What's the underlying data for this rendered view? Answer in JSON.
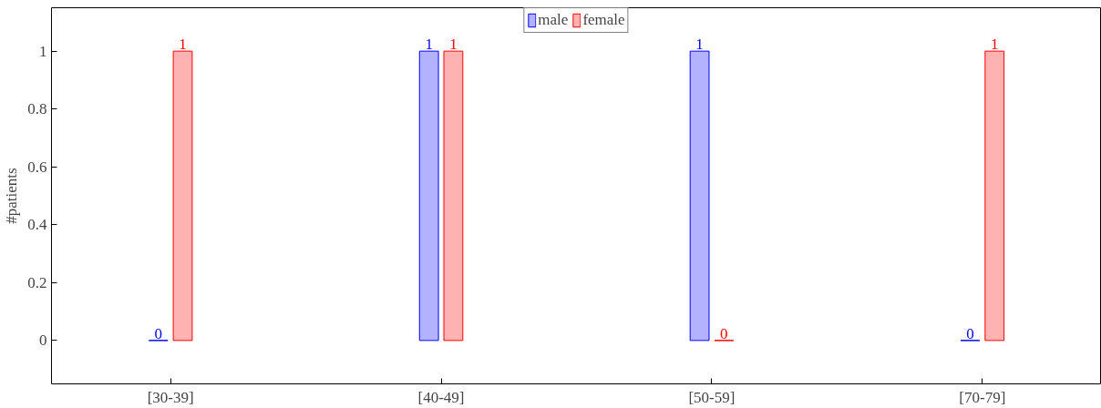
{
  "chart_data": {
    "type": "bar",
    "ylabel": "#patients",
    "categories": [
      "[30-39]",
      "[40-49]",
      "[50-59]",
      "[70-79]"
    ],
    "series": [
      {
        "name": "male",
        "color": "#0000ff",
        "values": [
          0,
          1,
          1,
          0
        ]
      },
      {
        "name": "female",
        "color": "#ff0000",
        "values": [
          1,
          1,
          0,
          1
        ]
      }
    ],
    "ylim": [
      -0.15,
      1.15
    ],
    "yticks": [
      0,
      0.2,
      0.4,
      0.6,
      0.8,
      1
    ],
    "grid": false,
    "legend": "top",
    "data_labels": true
  }
}
